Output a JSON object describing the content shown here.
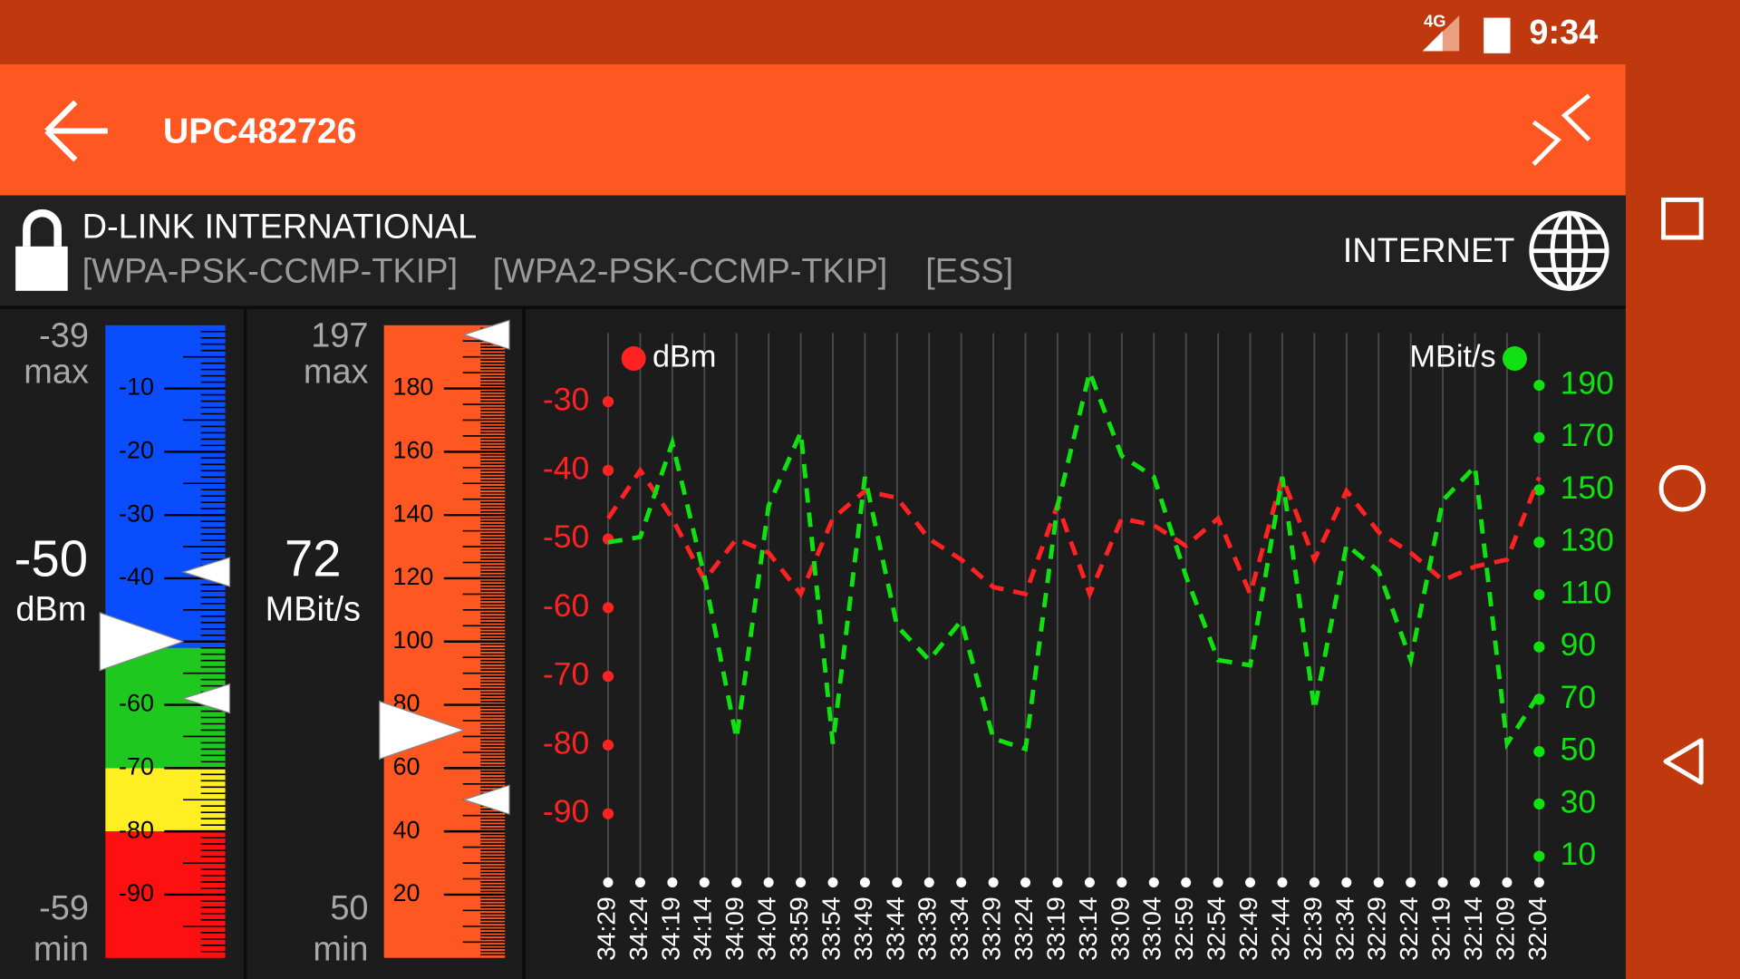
{
  "status_bar": {
    "network": "4G",
    "time": "9:34"
  },
  "app_bar": {
    "title": "UPC482726"
  },
  "network_info": {
    "vendor": "D-LINK INTERNATIONAL",
    "capabilities": [
      "[WPA-PSK-CCMP-TKIP]",
      "[WPA2-PSK-CCMP-TKIP]",
      "[ESS]"
    ],
    "connection": "INTERNET"
  },
  "signal_gauge": {
    "max_value": -39,
    "max_label": "max",
    "current": -50,
    "unit": "dBm",
    "min_value": -59,
    "min_label": "min",
    "range": [
      0,
      -100
    ],
    "ticks": [
      -10,
      -20,
      -30,
      -40,
      -50,
      -60,
      -70,
      -80,
      -90
    ],
    "bands": [
      {
        "from": 0,
        "to": -51,
        "color": "#0a4dff"
      },
      {
        "from": -51,
        "to": -70,
        "color": "#1ec81e"
      },
      {
        "from": -70,
        "to": -80,
        "color": "#ffee22"
      },
      {
        "from": -80,
        "to": -100,
        "color": "#ff1010"
      }
    ]
  },
  "speed_gauge": {
    "max_value": 197,
    "max_label": "max",
    "current": 72,
    "unit": "MBit/s",
    "min_value": 50,
    "min_label": "min",
    "range": [
      200,
      0
    ],
    "ticks": [
      20,
      40,
      60,
      80,
      100,
      120,
      140,
      160,
      180
    ],
    "bands": [
      {
        "from": 200,
        "to": 0,
        "color": "#ff5722"
      }
    ]
  },
  "chart_data": {
    "type": "line",
    "categories": [
      "34:29",
      "34:24",
      "34:19",
      "34:14",
      "34:09",
      "34:04",
      "33:59",
      "33:54",
      "33:49",
      "33:44",
      "33:39",
      "33:34",
      "33:29",
      "33:24",
      "33:19",
      "33:14",
      "33:09",
      "33:04",
      "32:59",
      "32:54",
      "32:49",
      "32:44",
      "32:39",
      "32:34",
      "32:29",
      "32:24",
      "32:19",
      "32:14",
      "32:09",
      "32:04"
    ],
    "series": [
      {
        "name": "dBm",
        "color": "#ff2222",
        "axis": "y",
        "values": [
          -47,
          -40,
          -47,
          -56,
          -50,
          -52,
          -58,
          -47,
          -43,
          -44,
          -50,
          -53,
          -57,
          -58,
          -45,
          -58,
          -47,
          -48,
          -51,
          -47,
          -58,
          -41,
          -53,
          -43,
          -49,
          -52,
          -56,
          -54,
          -53,
          -41
        ]
      },
      {
        "name": "MBit/s",
        "color": "#11e011",
        "axis": "y2",
        "values": [
          130,
          132,
          168,
          117,
          55,
          144,
          172,
          53,
          155,
          98,
          85,
          100,
          55,
          51,
          144,
          195,
          163,
          155,
          117,
          85,
          83,
          155,
          66,
          129,
          119,
          85,
          146,
          159,
          53,
          72
        ]
      }
    ],
    "ylim": [
      -100,
      -20
    ],
    "yticks": [
      -90,
      -80,
      -70,
      -60,
      -50,
      -40,
      -30
    ],
    "y2lim": [
      0,
      210
    ],
    "y2ticks": [
      10,
      30,
      50,
      70,
      90,
      110,
      130,
      150,
      170,
      190
    ],
    "grid": true
  }
}
